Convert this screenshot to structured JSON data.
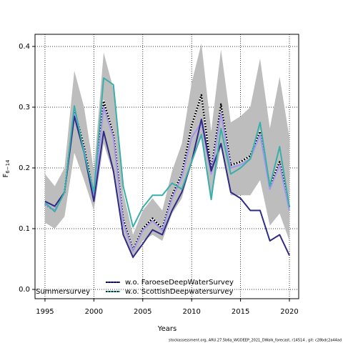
{
  "chart_data": {
    "type": "line",
    "y_label": "F",
    "y_label_subscript": "6−14",
    "x_label": "Years",
    "footer": "stockassessment.org, ARU.27.5b6a_WGDEEP_2021_DWalk_forecast, r14514 , git: c28bdc2a44ad",
    "x": [
      1995,
      1996,
      1997,
      1998,
      1999,
      2000,
      2001,
      2002,
      2003,
      2004,
      2005,
      2006,
      2007,
      2008,
      2009,
      2010,
      2011,
      2012,
      2013,
      2014,
      2015,
      2016,
      2017,
      2018,
      2019,
      2020
    ],
    "xlim": [
      1993.98,
      2020.95
    ],
    "xticks": [
      1995,
      2000,
      2005,
      2010,
      2015,
      2020
    ],
    "ylim": [
      -0.0153,
      0.42
    ],
    "yticks": [
      {
        "value": 0,
        "label": "0.0"
      },
      0.1,
      0.2,
      0.3,
      0.4
    ],
    "grid": true,
    "legend": "lower center",
    "band": {
      "color": "#bdbdbd",
      "low": [
        0.11,
        0.1,
        0.12,
        0.225,
        0.18,
        0.13,
        0.24,
        0.19,
        0.09,
        0.05,
        0.08,
        0.09,
        0.08,
        0.125,
        0.15,
        0.21,
        0.25,
        0.15,
        0.235,
        0.155,
        0.155,
        0.155,
        0.18,
        0.105,
        0.125,
        0.08
      ],
      "high": [
        0.19,
        0.17,
        0.2,
        0.36,
        0.3,
        0.195,
        0.39,
        0.33,
        0.16,
        0.09,
        0.13,
        0.15,
        0.13,
        0.195,
        0.24,
        0.34,
        0.405,
        0.26,
        0.395,
        0.275,
        0.285,
        0.3,
        0.38,
        0.265,
        0.35,
        0.25
      ]
    },
    "estimate": {
      "color": "#000000",
      "values": [
        0.14,
        0.13,
        0.16,
        0.295,
        0.235,
        0.155,
        0.31,
        0.255,
        0.115,
        0.065,
        0.1,
        0.117,
        0.1,
        0.155,
        0.19,
        0.27,
        0.32,
        0.195,
        0.305,
        0.205,
        0.21,
        0.22,
        0.26,
        0.17,
        0.21,
        0.135
      ]
    },
    "series": [
      {
        "name": "Summersurvey",
        "color": "#a195ee",
        "values": [
          0.14,
          0.13,
          0.16,
          0.29,
          0.23,
          0.15,
          0.3,
          0.25,
          0.11,
          0.063,
          0.097,
          0.113,
          0.097,
          0.15,
          0.185,
          0.25,
          0.275,
          0.19,
          0.29,
          0.2,
          0.205,
          0.215,
          0.255,
          0.165,
          0.205,
          0.13
        ]
      },
      {
        "name": "w.o. FaroeseDeepWaterSurvey",
        "color": "#2e2a88",
        "values": [
          0.145,
          0.137,
          0.16,
          0.285,
          0.225,
          0.145,
          0.26,
          0.195,
          0.09,
          0.053,
          0.075,
          0.098,
          0.09,
          0.13,
          0.16,
          0.21,
          0.28,
          0.195,
          0.24,
          0.16,
          0.15,
          0.13,
          0.13,
          0.08,
          0.09,
          0.056
        ]
      },
      {
        "name": "w.o. ScottishDeepwatersurvey",
        "color": "#3aafa9",
        "values": [
          0.143,
          0.128,
          0.16,
          0.302,
          0.225,
          0.16,
          0.348,
          0.337,
          0.17,
          0.103,
          0.135,
          0.155,
          0.155,
          0.175,
          0.165,
          0.21,
          0.255,
          0.148,
          0.265,
          0.19,
          0.2,
          0.215,
          0.275,
          0.17,
          0.235,
          0.135
        ]
      }
    ]
  }
}
